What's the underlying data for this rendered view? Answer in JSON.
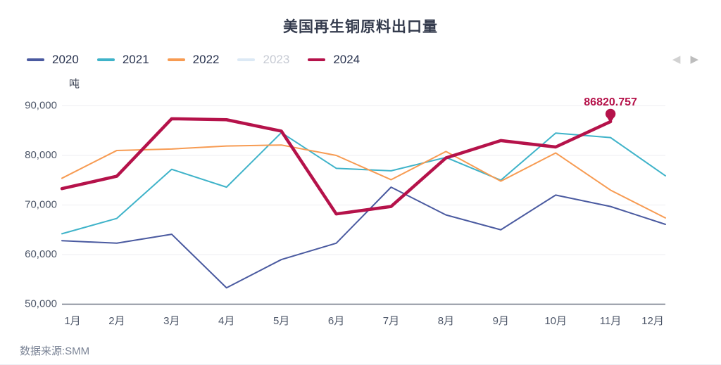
{
  "header": {
    "title": "美国再生铜原料出口量"
  },
  "legend": {
    "items": [
      {
        "label": "2020",
        "color": "#4a5aa0",
        "active": true
      },
      {
        "label": "2021",
        "color": "#3fb3c9",
        "active": true
      },
      {
        "label": "2022",
        "color": "#f79b52",
        "active": true
      },
      {
        "label": "2023",
        "color": "#dce9f5",
        "active": false
      },
      {
        "label": "2024",
        "color": "#b5124a",
        "active": true
      }
    ],
    "prev_icon": "◀",
    "next_icon": "▶"
  },
  "chart_data": {
    "type": "line",
    "title": "美国再生铜原料出口量",
    "unit_label": "吨",
    "categories": [
      "1月",
      "2月",
      "3月",
      "4月",
      "5月",
      "6月",
      "7月",
      "8月",
      "9月",
      "10月",
      "11月",
      "12月"
    ],
    "ylim": [
      50000,
      90000
    ],
    "yticks": [
      50000,
      60000,
      70000,
      80000,
      90000
    ],
    "ytick_labels": [
      "50,000",
      "60,000",
      "70,000",
      "80,000",
      "90,000"
    ],
    "grid": true,
    "legend_position": "top-left",
    "series": [
      {
        "name": "2020",
        "color": "#4a5aa0",
        "visible": true,
        "line_width": 2,
        "values": [
          62800,
          62300,
          64100,
          53300,
          59000,
          62300,
          73600,
          68000,
          65000,
          72000,
          69700,
          66100
        ]
      },
      {
        "name": "2021",
        "color": "#3fb3c9",
        "visible": true,
        "line_width": 2,
        "values": [
          64200,
          67300,
          77200,
          73600,
          84600,
          77400,
          76900,
          79600,
          75000,
          84500,
          83600,
          75900
        ]
      },
      {
        "name": "2022",
        "color": "#f79b52",
        "visible": true,
        "line_width": 2,
        "values": [
          75400,
          81000,
          81300,
          81900,
          82100,
          80000,
          75100,
          80800,
          74800,
          80500,
          73000,
          67400
        ]
      },
      {
        "name": "2023",
        "color": "#dce9f5",
        "visible": false,
        "line_width": 2,
        "values": []
      },
      {
        "name": "2024",
        "color": "#b5124a",
        "visible": true,
        "line_width": 4.5,
        "values": [
          73300,
          75800,
          87400,
          87200,
          84900,
          68200,
          69700,
          79500,
          83000,
          81700,
          86820.757
        ]
      }
    ],
    "annotation": {
      "series": "2024",
      "category": "11月",
      "value": 86820.757,
      "label": "86820.757"
    }
  },
  "footer": {
    "source": "数据来源:SMM"
  }
}
